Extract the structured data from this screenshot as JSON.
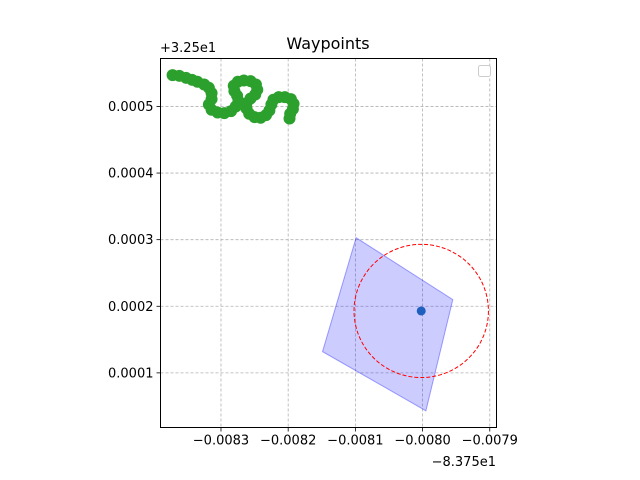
{
  "chart_data": {
    "type": "scatter",
    "title": "Waypoints",
    "xlabel": "",
    "ylabel": "",
    "x_offset_label": "−8.375e1",
    "y_offset_label": "+3.25e1",
    "xlim": [
      -0.00839,
      -0.00789
    ],
    "ylim": [
      1.8e-05,
      0.000572
    ],
    "x_ticks": [
      {
        "value": -0.0083,
        "label": "−0.0083"
      },
      {
        "value": -0.0082,
        "label": "−0.0082"
      },
      {
        "value": -0.0081,
        "label": "−0.0081"
      },
      {
        "value": -0.008,
        "label": "−0.0080"
      },
      {
        "value": -0.0079,
        "label": "−0.0079"
      }
    ],
    "y_ticks": [
      {
        "value": 0.0001,
        "label": "0.0001"
      },
      {
        "value": 0.0002,
        "label": "0.0002"
      },
      {
        "value": 0.0003,
        "label": "0.0003"
      },
      {
        "value": 0.0004,
        "label": "0.0004"
      },
      {
        "value": 0.0005,
        "label": "0.0005"
      }
    ],
    "grid": true,
    "legend": "top-right (empty)",
    "path": {
      "color": "#2ca02c",
      "points": [
        [
          -0.008372,
          0.000547
        ],
        [
          -0.008362,
          0.000546
        ],
        [
          -0.008352,
          0.000543
        ],
        [
          -0.008343,
          0.00054
        ],
        [
          -0.008335,
          0.000537
        ],
        [
          -0.008325,
          0.000533
        ],
        [
          -0.008318,
          0.000528
        ],
        [
          -0.008314,
          0.00052
        ],
        [
          -0.008314,
          0.000511
        ],
        [
          -0.008318,
          0.000503
        ],
        [
          -0.008314,
          0.000495
        ],
        [
          -0.008305,
          0.000491
        ],
        [
          -0.008295,
          0.00049
        ],
        [
          -0.008285,
          0.000493
        ],
        [
          -0.008278,
          0.0005
        ],
        [
          -0.008274,
          0.000508
        ],
        [
          -0.008276,
          0.000516
        ],
        [
          -0.00828,
          0.000523
        ],
        [
          -0.008281,
          0.000531
        ],
        [
          -0.008275,
          0.000537
        ],
        [
          -0.008266,
          0.000539
        ],
        [
          -0.008256,
          0.000538
        ],
        [
          -0.008248,
          0.000533
        ],
        [
          -0.008246,
          0.000525
        ],
        [
          -0.008249,
          0.000518
        ],
        [
          -0.008256,
          0.000512
        ],
        [
          -0.008262,
          0.000505
        ],
        [
          -0.008262,
          0.000497
        ],
        [
          -0.008258,
          0.000489
        ],
        [
          -0.00825,
          0.000484
        ],
        [
          -0.008241,
          0.000483
        ],
        [
          -0.008233,
          0.000487
        ],
        [
          -0.008228,
          0.000494
        ],
        [
          -0.008225,
          0.000503
        ],
        [
          -0.008222,
          0.00051
        ],
        [
          -0.008214,
          0.000514
        ],
        [
          -0.008205,
          0.000514
        ],
        [
          -0.008196,
          0.000511
        ],
        [
          -0.008192,
          0.000504
        ],
        [
          -0.008193,
          0.000496
        ],
        [
          -0.008197,
          0.000489
        ],
        [
          -0.008198,
          0.000482
        ]
      ]
    },
    "polygon": {
      "color": "#0000ff",
      "fill_opacity": 0.2,
      "vertices": [
        [
          -0.008099,
          0.000303
        ],
        [
          -0.007955,
          0.00021
        ],
        [
          -0.007995,
          4.3e-05
        ],
        [
          -0.008149,
          0.000132
        ]
      ]
    },
    "circle": {
      "color": "#ff0000",
      "center": [
        -0.008002,
        0.000193
      ],
      "radius": 0.0001
    },
    "point": {
      "color": "#1f5fc0",
      "value": [
        -0.008002,
        0.000193
      ]
    }
  }
}
